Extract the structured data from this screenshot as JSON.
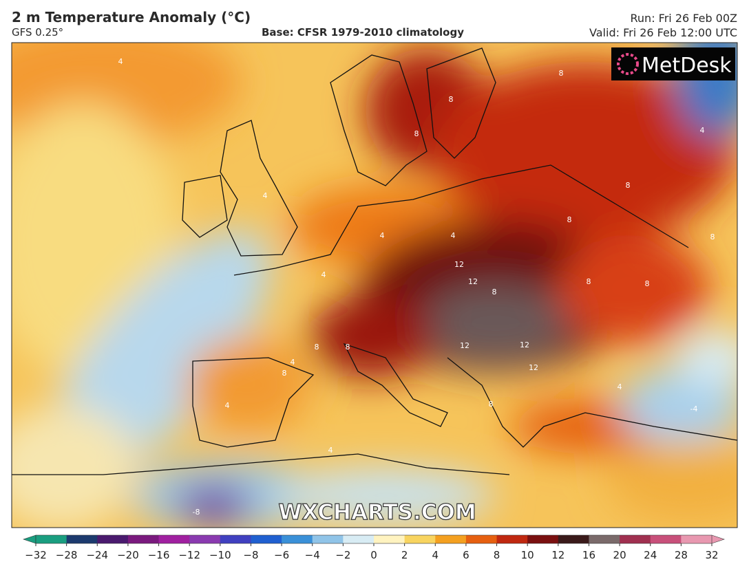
{
  "header": {
    "title": "2 m Temperature Anomaly (°C)",
    "model": "GFS 0.25°",
    "base": "Base: CFSR 1979-2010 climatology",
    "run": "Run: Fri 26 Feb 00Z",
    "valid": "Valid: Fri 26 Feb 12:00 UTC"
  },
  "logo": "MetDesk",
  "watermark": "WXCHARTS.COM",
  "contour_labels": [
    4,
    4,
    4,
    4,
    4,
    8,
    8,
    8,
    8,
    8,
    8,
    12,
    12,
    8,
    8,
    8,
    8,
    8,
    12,
    12,
    12,
    4,
    8,
    4,
    8,
    4,
    -4,
    4,
    4,
    -8
  ],
  "colorbar": {
    "ticks": [
      {
        "value": -32,
        "label": "−32"
      },
      {
        "value": -28,
        "label": "−28"
      },
      {
        "value": -24,
        "label": "−24"
      },
      {
        "value": -20,
        "label": "−20"
      },
      {
        "value": -16,
        "label": "−16"
      },
      {
        "value": -12,
        "label": "−12"
      },
      {
        "value": -10,
        "label": "−10"
      },
      {
        "value": -8,
        "label": "−8"
      },
      {
        "value": -6,
        "label": "−6"
      },
      {
        "value": -4,
        "label": "−4"
      },
      {
        "value": -2,
        "label": "−2"
      },
      0,
      2,
      4,
      6,
      8,
      10,
      12,
      16,
      20,
      24,
      28,
      32
    ],
    "colors": [
      "#1a9e80",
      "#1c3a6e",
      "#4a1a6e",
      "#7a1a7e",
      "#a020a0",
      "#8a3ab0",
      "#4040c0",
      "#2060d0",
      "#3a90d8",
      "#90c4e8",
      "#d8ecf4",
      "#fff3c0",
      "#f8d460",
      "#f4a020",
      "#e66010",
      "#c02810",
      "#7a1010",
      "#3a1a1a",
      "#7a6a6a",
      "#a03050",
      "#c8507a",
      "#e898b0"
    ]
  }
}
